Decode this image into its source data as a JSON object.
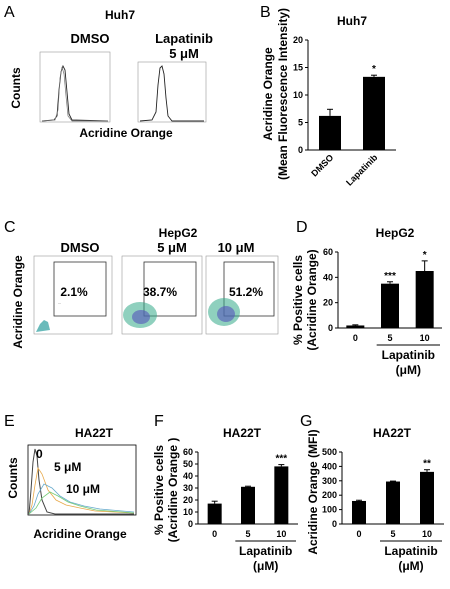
{
  "panel_letters": {
    "a": "A",
    "b": "B",
    "c": "C",
    "d": "D",
    "e": "E",
    "f": "F",
    "g": "G"
  },
  "panel_a": {
    "title": "Huh7",
    "left_label": "DMSO",
    "right_label_1": "Lapatinib",
    "right_label_2": "5 μM",
    "ylabel": "Counts",
    "xlabel": "Acridine Orange"
  },
  "panel_c": {
    "title_line1": "HepG2",
    "labels": [
      "DMSO",
      "5 μM",
      "10 μM"
    ],
    "percents": [
      "2.1%",
      "38.7%",
      "51.2%"
    ],
    "ylabel": "Acridine Orange"
  },
  "panel_e": {
    "title": "HA22T",
    "ylabel": "Counts",
    "xlabel": "Acridine Orange",
    "curve_labels": [
      "0",
      "5 μM",
      "10 μM"
    ]
  },
  "chart_data": [
    {
      "id": "B",
      "type": "bar",
      "title": "Huh7",
      "ylabel_line1": "Acridine Orange",
      "ylabel_line2": "(Mean Fluorescence Intensity)",
      "categories": [
        "DMSO",
        "Lapatinib"
      ],
      "values": [
        6.2,
        13.3
      ],
      "errors": [
        1.2,
        0.3
      ],
      "significance": [
        "",
        "*"
      ],
      "yticks": [
        0,
        5,
        10,
        15,
        20
      ],
      "ylim": [
        0,
        20
      ]
    },
    {
      "id": "D",
      "type": "bar",
      "title": "HepG2",
      "ylabel_line1": "% Positive cells",
      "ylabel_line2": "(Acridine Orange)",
      "categories": [
        "0",
        "5",
        "10"
      ],
      "values": [
        2,
        35,
        45
      ],
      "errors": [
        0.5,
        1.5,
        8
      ],
      "significance": [
        "",
        "***",
        "*"
      ],
      "yticks": [
        0,
        20,
        40,
        60
      ],
      "ylim": [
        0,
        60
      ],
      "xlabel_line1": "Lapatinib",
      "xlabel_line2": "(μM)"
    },
    {
      "id": "F",
      "type": "bar",
      "title": "HA22T",
      "ylabel_line1": "% Positive cells",
      "ylabel_line2": "(Acridine Orange )",
      "categories": [
        "0",
        "5",
        "10"
      ],
      "values": [
        17,
        31,
        48
      ],
      "errors": [
        2,
        0.5,
        1.5
      ],
      "significance": [
        "",
        "",
        "***"
      ],
      "yticks": [
        0,
        10,
        20,
        30,
        40,
        50,
        60
      ],
      "ylim": [
        0,
        60
      ],
      "xlabel_line1": "Lapatinib",
      "xlabel_line2": "(μM)"
    },
    {
      "id": "G",
      "type": "bar",
      "title": "HA22T",
      "ylabel_line1": "Acridine Orange (MFI)",
      "ylabel_line2": "",
      "categories": [
        "0",
        "5",
        "10"
      ],
      "values": [
        160,
        295,
        362
      ],
      "errors": [
        5,
        3,
        15
      ],
      "significance": [
        "",
        "",
        "**"
      ],
      "yticks": [
        0,
        100,
        200,
        300,
        400,
        500
      ],
      "ylim": [
        0,
        500
      ],
      "xlabel_line1": "Lapatinib",
      "xlabel_line2": "(μM)"
    }
  ]
}
